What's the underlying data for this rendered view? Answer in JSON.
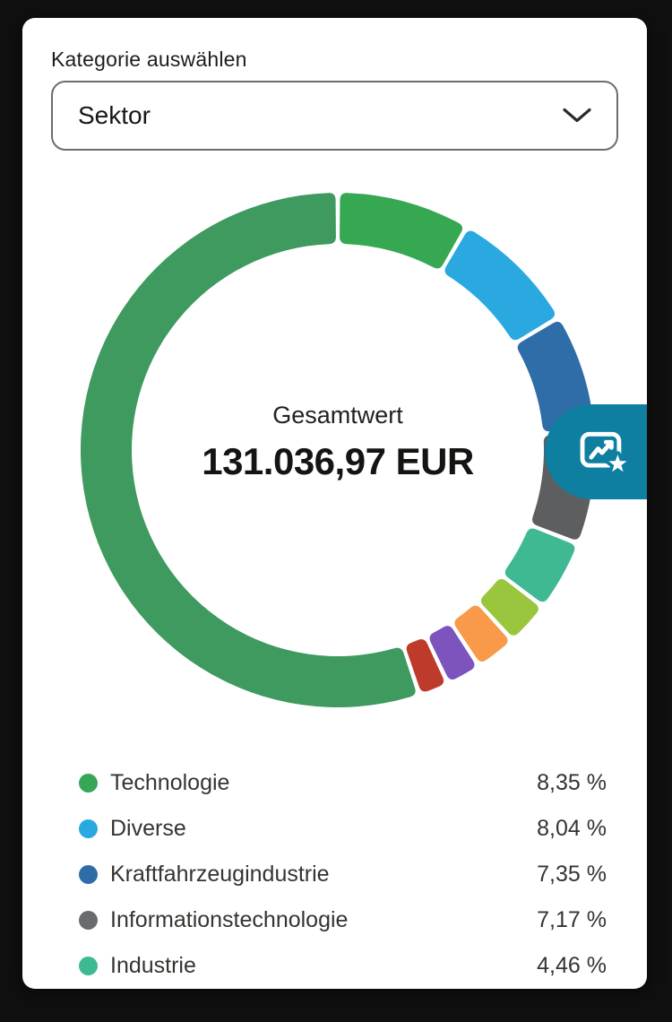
{
  "filter": {
    "label": "Kategorie auswählen",
    "value": "Sektor"
  },
  "donut_center": {
    "label": "Gesamtwert",
    "value": "131.036,97 EUR"
  },
  "chart_data": {
    "type": "pie",
    "variant": "donut",
    "center_label": "Gesamtwert",
    "center_value": "131.036,97 EUR",
    "currency": "EUR",
    "start_angle_deg": 0,
    "direction": "clockwise",
    "legend_position": "bottom",
    "segments": [
      {
        "label": "Technologie",
        "value": 8.35,
        "color": "#36A852"
      },
      {
        "label": "Diverse",
        "value": 8.04,
        "color": "#29A9E0"
      },
      {
        "label": "Kraftfahrzeugindustrie",
        "value": 7.35,
        "color": "#2F6DA8"
      },
      {
        "label": "Informationstechnologie",
        "value": 7.17,
        "color": "#5D5E60"
      },
      {
        "label": "Industrie",
        "value": 4.46,
        "color": "#3EB994"
      },
      {
        "label": null,
        "value": 2.8,
        "color": "#9AC63D"
      },
      {
        "label": null,
        "value": 2.6,
        "color": "#F89A49"
      },
      {
        "label": null,
        "value": 2.2,
        "color": "#7D53BE"
      },
      {
        "label": null,
        "value": 1.9,
        "color": "#BE3B2C"
      },
      {
        "label": null,
        "value": 55.13,
        "color": "#3E9A5E"
      }
    ]
  },
  "legend": {
    "items": [
      {
        "label": "Technologie",
        "percent": "8,35 %",
        "color": "#38A654"
      },
      {
        "label": "Diverse",
        "percent": "8,04 %",
        "color": "#29A9E0"
      },
      {
        "label": "Kraftfahrzeugindustrie",
        "percent": "7,35 %",
        "color": "#2F6DA8"
      },
      {
        "label": "Informationstechnologie",
        "percent": "7,17 %",
        "color": "#6A6B6D"
      },
      {
        "label": "Industrie",
        "percent": "4,46 %",
        "color": "#3EB994"
      }
    ]
  },
  "fab": {
    "color": "#0F7FA1",
    "icon": "chart-trend-star"
  }
}
